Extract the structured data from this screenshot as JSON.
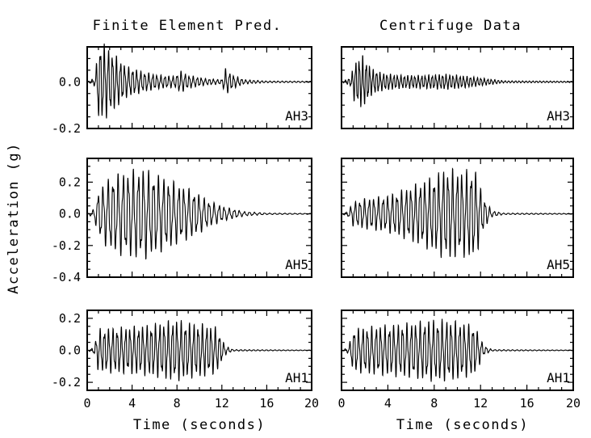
{
  "chart_data": {
    "type": "line",
    "column_titles": [
      "Finite Element Pred.",
      "Centrifuge Data"
    ],
    "ylabel": "Acceleration (g)",
    "xlabel": "Time (seconds)",
    "xlim": [
      0,
      20
    ],
    "xticks": [
      0,
      4,
      8,
      12,
      16,
      20
    ],
    "xtick_labels_left": [
      "0",
      "4",
      "8",
      "12",
      "16",
      "20"
    ],
    "xtick_labels_right": [
      "0",
      "4",
      "8",
      "12",
      "16",
      "20"
    ],
    "rows": [
      {
        "label": "AH3",
        "ylim": [
          -0.2,
          0.15
        ],
        "yticks": [
          0.0,
          -0.2
        ],
        "ytick_labels": [
          "0.0",
          "-0.2"
        ],
        "series": [
          {
            "panel": "Finite Element Pred.",
            "envelope": [
              [
                0,
                0.0
              ],
              [
                0.7,
                0.02
              ],
              [
                1.0,
                0.17
              ],
              [
                1.5,
                0.17
              ],
              [
                2.5,
                0.12
              ],
              [
                3.5,
                0.07
              ],
              [
                5.0,
                0.045
              ],
              [
                6.5,
                0.03
              ],
              [
                7.8,
                0.025
              ],
              [
                8.3,
                0.05
              ],
              [
                9.0,
                0.03
              ],
              [
                10.5,
                0.015
              ],
              [
                12.0,
                0.01
              ],
              [
                12.3,
                0.06
              ],
              [
                13.0,
                0.03
              ],
              [
                14.0,
                0.01
              ],
              [
                16.0,
                0.004
              ],
              [
                20,
                0.003
              ]
            ],
            "period": 0.36
          },
          {
            "panel": "Centrifuge Data",
            "envelope": [
              [
                0,
                0.0
              ],
              [
                0.8,
                0.02
              ],
              [
                1.1,
                0.09
              ],
              [
                1.8,
                0.12
              ],
              [
                2.6,
                0.06
              ],
              [
                3.5,
                0.04
              ],
              [
                5.0,
                0.03
              ],
              [
                7.0,
                0.03
              ],
              [
                9.0,
                0.035
              ],
              [
                11.0,
                0.025
              ],
              [
                12.5,
                0.015
              ],
              [
                14.0,
                0.005
              ],
              [
                20,
                0.003
              ]
            ],
            "period": 0.3
          }
        ]
      },
      {
        "label": "AH5",
        "ylim": [
          -0.4,
          0.35
        ],
        "yticks": [
          0.2,
          0.0,
          -0.2,
          -0.4
        ],
        "ytick_labels": [
          "0.2",
          "0.0",
          "-0.2",
          "-0.4"
        ],
        "series": [
          {
            "panel": "Finite Element Pred.",
            "envelope": [
              [
                0,
                0.0
              ],
              [
                0.6,
                0.03
              ],
              [
                1.0,
                0.15
              ],
              [
                2.0,
                0.24
              ],
              [
                3.0,
                0.27
              ],
              [
                5.0,
                0.3
              ],
              [
                6.5,
                0.25
              ],
              [
                8.0,
                0.2
              ],
              [
                9.5,
                0.15
              ],
              [
                11.0,
                0.08
              ],
              [
                12.5,
                0.04
              ],
              [
                14.0,
                0.015
              ],
              [
                16.0,
                0.005
              ],
              [
                20,
                0.003
              ]
            ],
            "period": 0.45
          },
          {
            "panel": "Centrifuge Data",
            "envelope": [
              [
                0,
                0.0
              ],
              [
                0.6,
                0.02
              ],
              [
                1.0,
                0.08
              ],
              [
                2.0,
                0.1
              ],
              [
                4.0,
                0.12
              ],
              [
                6.0,
                0.18
              ],
              [
                8.0,
                0.25
              ],
              [
                9.0,
                0.3
              ],
              [
                10.5,
                0.28
              ],
              [
                11.5,
                0.3
              ],
              [
                12.3,
                0.1
              ],
              [
                13.0,
                0.02
              ],
              [
                14.0,
                0.005
              ],
              [
                20,
                0.003
              ]
            ],
            "period": 0.4
          }
        ]
      },
      {
        "label": "AH1",
        "ylim": [
          -0.25,
          0.25
        ],
        "yticks": [
          0.2,
          0.0,
          -0.2
        ],
        "ytick_labels": [
          "0.2",
          "0.0",
          "-0.2"
        ],
        "series": [
          {
            "panel": "Finite Element Pred.",
            "envelope": [
              [
                0,
                0.0
              ],
              [
                0.6,
                0.02
              ],
              [
                1.0,
                0.14
              ],
              [
                3.0,
                0.15
              ],
              [
                5.0,
                0.16
              ],
              [
                8.0,
                0.2
              ],
              [
                9.0,
                0.18
              ],
              [
                10.5,
                0.17
              ],
              [
                11.5,
                0.15
              ],
              [
                12.3,
                0.03
              ],
              [
                13.0,
                0.005
              ],
              [
                20,
                0.002
              ]
            ],
            "period": 0.38
          },
          {
            "panel": "Centrifuge Data",
            "envelope": [
              [
                0,
                0.0
              ],
              [
                0.6,
                0.02
              ],
              [
                1.0,
                0.14
              ],
              [
                3.0,
                0.16
              ],
              [
                5.0,
                0.17
              ],
              [
                8.0,
                0.2
              ],
              [
                9.0,
                0.2
              ],
              [
                10.5,
                0.18
              ],
              [
                11.5,
                0.16
              ],
              [
                12.3,
                0.03
              ],
              [
                13.0,
                0.005
              ],
              [
                20,
                0.002
              ]
            ],
            "period": 0.38
          }
        ]
      }
    ]
  }
}
